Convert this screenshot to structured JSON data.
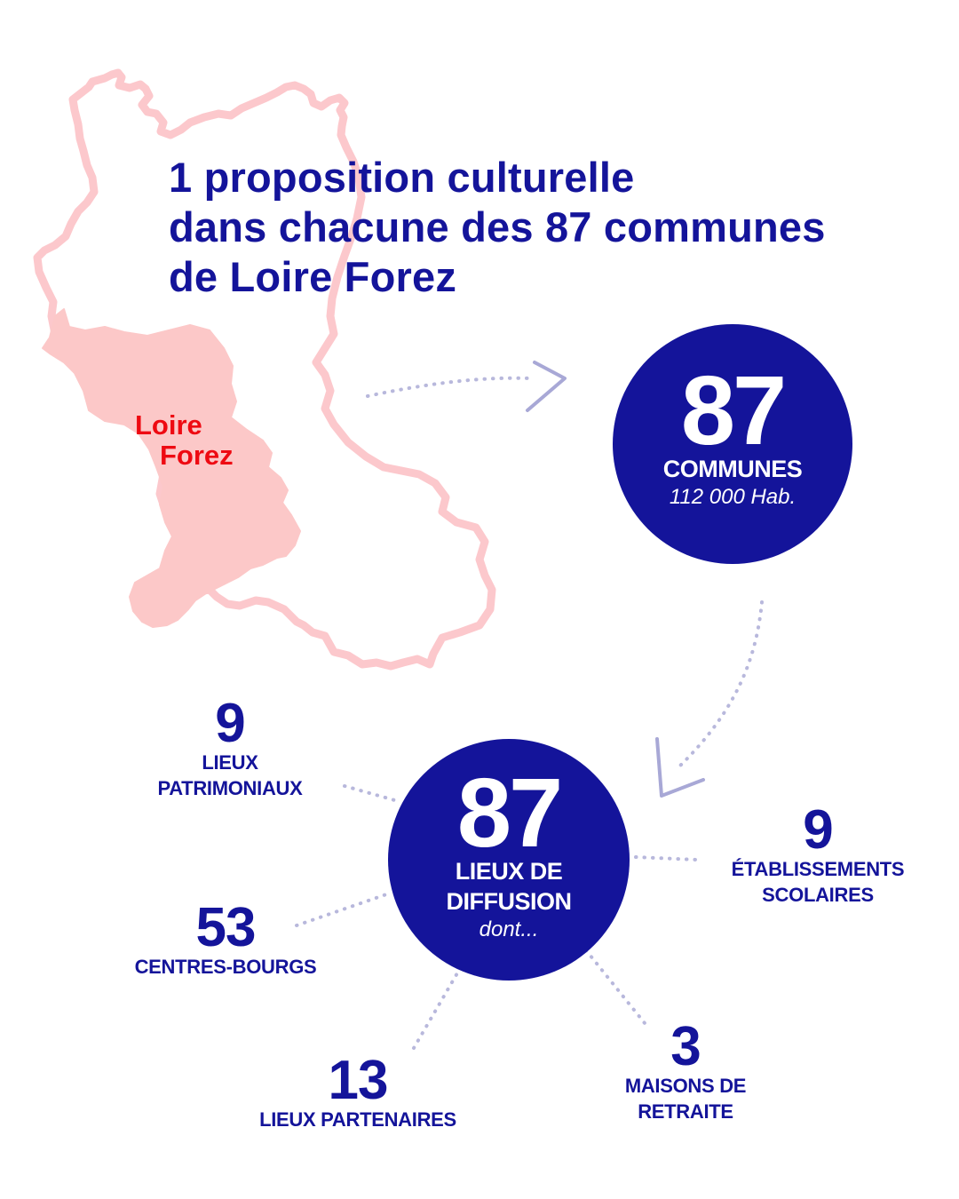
{
  "title_lines": [
    "1 proposition culturelle",
    "dans chacune des 87 communes",
    "de Loire Forez"
  ],
  "map": {
    "label_lines": [
      "Loire",
      "Forez"
    ]
  },
  "communes": {
    "number": "87",
    "label": "COMMUNES",
    "sub": "112 000 Hab."
  },
  "lieux": {
    "number": "87",
    "label_lines": [
      "LIEUX DE",
      "DIFFUSION"
    ],
    "sub": "dont..."
  },
  "stats": {
    "patrimoniaux": {
      "number": "9",
      "label_lines": [
        "LIEUX",
        "PATRIMONIAUX"
      ]
    },
    "scolaires": {
      "number": "9",
      "label_lines": [
        "ÉTABLISSEMENTS",
        "SCOLAIRES"
      ]
    },
    "bourgs": {
      "number": "53",
      "label_lines": [
        "CENTRES-BOURGS"
      ]
    },
    "partenaires": {
      "number": "13",
      "label_lines": [
        "LIEUX PARTENAIRES"
      ]
    },
    "retraite": {
      "number": "3",
      "label_lines": [
        "MAISONS DE",
        "RETRAITE"
      ]
    }
  },
  "colors": {
    "navy": "#14149a",
    "map_fill": "#fcc8c8",
    "map_outline": "#fcc8cc",
    "label_red": "#ee0a12",
    "dots": "#b8b8dc",
    "arrow": "#a8a8d6"
  }
}
